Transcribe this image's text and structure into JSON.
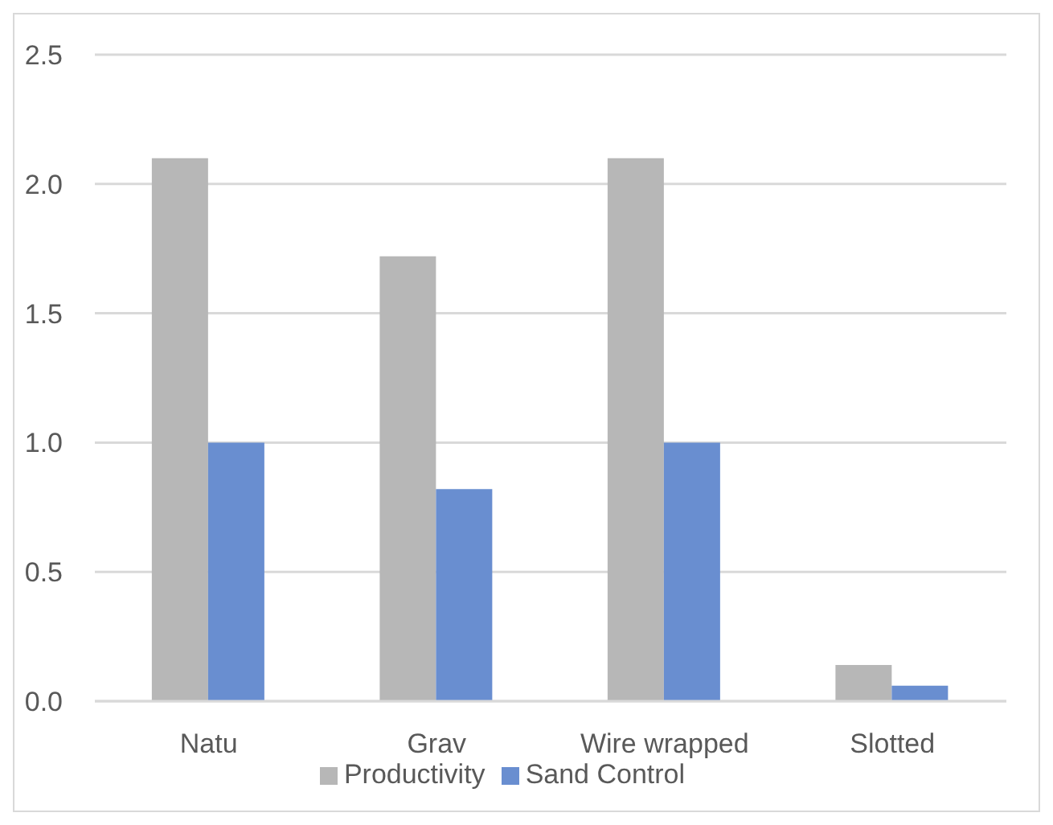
{
  "chart_data": {
    "type": "bar",
    "categories": [
      "Natu",
      "Grav",
      "Wire wrapped",
      "Slotted"
    ],
    "series": [
      {
        "name": "Productivity",
        "color": "#b7b7b7",
        "values": [
          2.1,
          1.72,
          2.1,
          0.14
        ]
      },
      {
        "name": "Sand Control",
        "color": "#698ed0",
        "values": [
          1.0,
          0.82,
          1.0,
          0.06
        ]
      }
    ],
    "ylim": [
      0,
      2.5
    ],
    "yticks": [
      {
        "value": 0,
        "label": "0.0"
      },
      0.5,
      {
        "value": 1,
        "label": "1.0"
      },
      1.5,
      {
        "value": 2,
        "label": "2.0"
      },
      2.5
    ],
    "grid": "y",
    "legend": "bottom"
  }
}
